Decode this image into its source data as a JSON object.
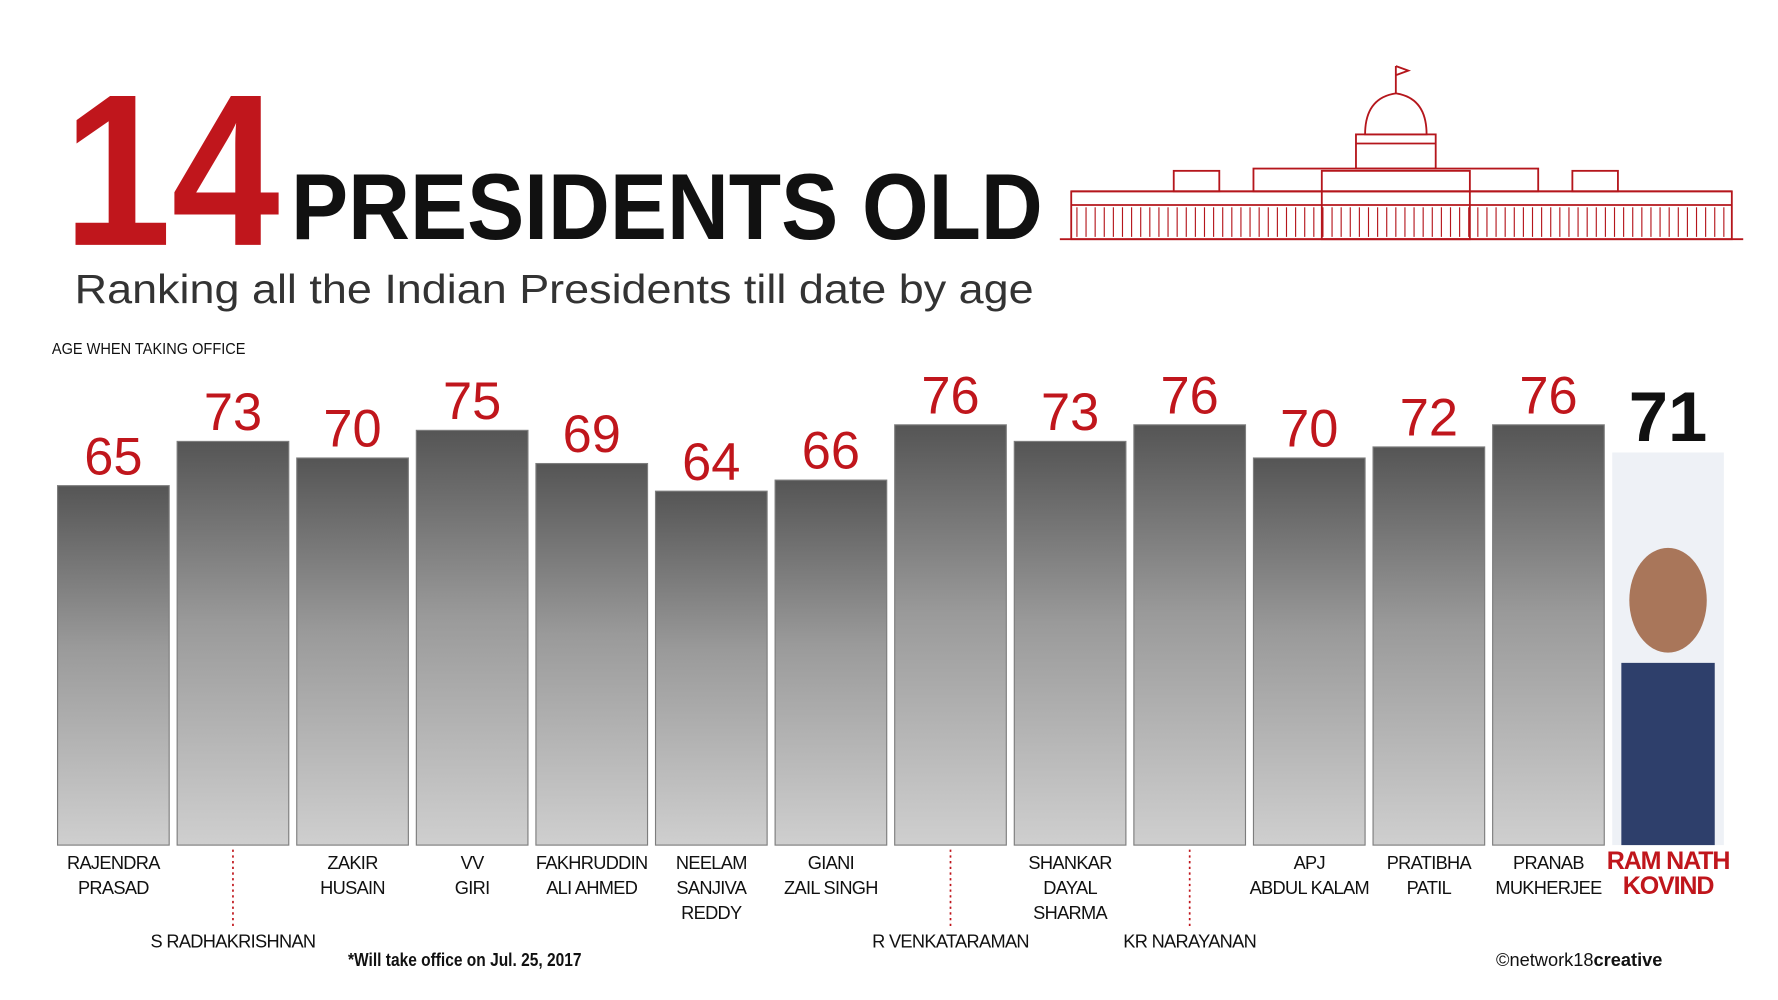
{
  "chart_data": {
    "type": "bar",
    "number": "14",
    "title": "PRESIDENTS OLD",
    "subtitle": "Ranking all the Indian Presidents till date by age",
    "axis_label": "AGE WHEN TAKING OFFICE",
    "categories": [
      [
        "RAJENDRA",
        "PRASAD"
      ],
      [
        "S RADHAKRISHNAN"
      ],
      [
        "ZAKIR",
        "HUSAIN"
      ],
      [
        "VV",
        "GIRI"
      ],
      [
        "FAKHRUDDIN",
        "ALI AHMED"
      ],
      [
        "NEELAM",
        "SANJIVA",
        "REDDY"
      ],
      [
        "GIANI",
        "ZAIL SINGH"
      ],
      [
        "R VENKATARAMAN"
      ],
      [
        "SHANKAR",
        "DAYAL",
        "SHARMA"
      ],
      [
        "KR NARAYANAN"
      ],
      [
        "APJ",
        "ABDUL KALAM"
      ],
      [
        "PRATIBHA",
        "PATIL"
      ],
      [
        "PRANAB",
        "MUKHERJEE"
      ],
      [
        "RAM NATH",
        "KOVIND"
      ]
    ],
    "values": [
      65,
      73,
      70,
      75,
      69,
      64,
      66,
      76,
      73,
      76,
      70,
      72,
      76,
      71
    ],
    "color": "#7d7d7d",
    "label_color": "#c0161c",
    "footnote": "*Will take office on Jul. 25, 2017",
    "credit": "©network18",
    "credit_bold": "creative"
  }
}
